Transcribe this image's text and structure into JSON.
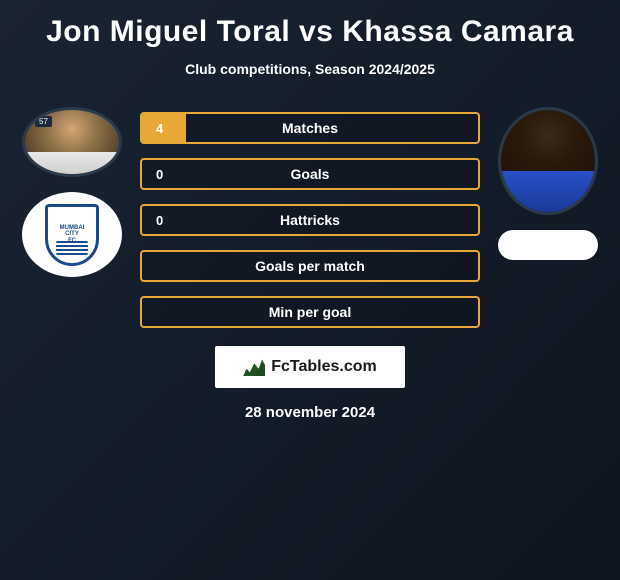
{
  "title": "Jon Miguel Toral vs Khassa Camara",
  "subtitle": "Club competitions, Season 2024/2025",
  "player1": {
    "badge_num": "57",
    "club_line1": "MUMBAI",
    "club_line2": "CITY",
    "club_line3": "FC"
  },
  "stats": [
    {
      "value": "4",
      "label": "Matches",
      "fill_pct": 13
    },
    {
      "value": "0",
      "label": "Goals",
      "fill_pct": 0
    },
    {
      "value": "0",
      "label": "Hattricks",
      "fill_pct": 0
    },
    {
      "value": "",
      "label": "Goals per match",
      "fill_pct": 0
    },
    {
      "value": "",
      "label": "Min per goal",
      "fill_pct": 0
    }
  ],
  "brand": "FcTables.com",
  "date": "28 november 2024",
  "colors": {
    "accent": "#e8a838",
    "bg_dark": "#0d1520",
    "text": "#ffffff"
  }
}
